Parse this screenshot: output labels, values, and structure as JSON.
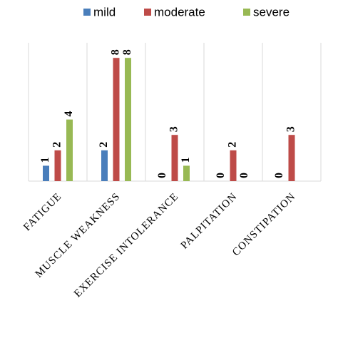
{
  "chart_data": {
    "type": "bar",
    "categories": [
      "FATIGUE",
      "MUSCLE WEAKNESS",
      "EXERCISE INTOLERANCE",
      "PALPITATION",
      "CONSTIPATION"
    ],
    "series": [
      {
        "name": "mild",
        "color": "#4a7ebb",
        "values": [
          1,
          2,
          0,
          0,
          0
        ]
      },
      {
        "name": "moderate",
        "color": "#be4b48",
        "values": [
          2,
          8,
          3,
          2,
          3
        ]
      },
      {
        "name": "severe",
        "color": "#98b954",
        "values": [
          4,
          8,
          1,
          0,
          null
        ]
      }
    ],
    "legend": "top"
  }
}
